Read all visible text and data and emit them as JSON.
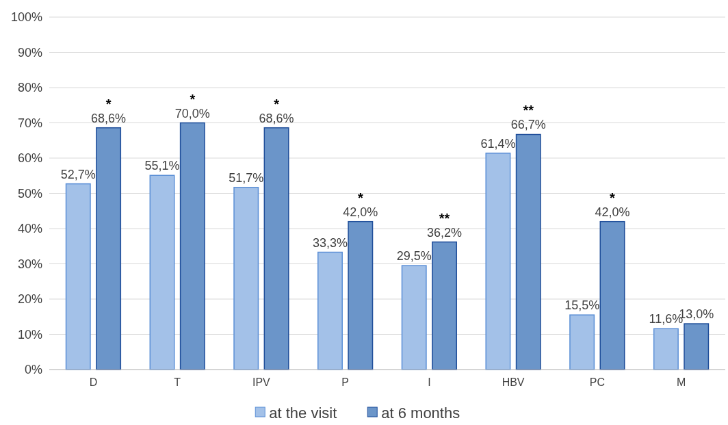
{
  "chart_data": {
    "type": "bar",
    "categories": [
      "D",
      "T",
      "IPV",
      "P",
      "I",
      "HBV",
      "PC",
      "M"
    ],
    "series": [
      {
        "name": "at the visit",
        "color": "#a3c1e8",
        "values": [
          52.7,
          55.1,
          51.7,
          33.3,
          29.5,
          61.4,
          15.5,
          11.6
        ],
        "value_labels": [
          "52,7%",
          "55,1%",
          "51,7%",
          "33,3%",
          "29,5%",
          "61,4%",
          "15,5%",
          "11,6%"
        ]
      },
      {
        "name": "at 6 months",
        "color": "#6b95c9",
        "values": [
          68.6,
          70.0,
          68.6,
          42.0,
          36.2,
          66.7,
          42.0,
          13.0
        ],
        "value_labels": [
          "68,6%",
          "70,0%",
          "68,6%",
          "42,0%",
          "36,2%",
          "66,7%",
          "42,0%",
          "13,0%"
        ]
      }
    ],
    "ylim": [
      0,
      100
    ],
    "yticks": [
      {
        "value": 0,
        "label": "0%"
      },
      {
        "value": 10,
        "label": "10%"
      },
      {
        "value": 20,
        "label": "20%"
      },
      {
        "value": 30,
        "label": "30%"
      },
      {
        "value": 40,
        "label": "40%"
      },
      {
        "value": 50,
        "label": "50%"
      },
      {
        "value": 60,
        "label": "60%"
      },
      {
        "value": 70,
        "label": "70%"
      },
      {
        "value": 80,
        "label": "80%"
      },
      {
        "value": 90,
        "label": "90%"
      },
      {
        "value": 100,
        "label": "100%"
      }
    ],
    "grid": "y",
    "legend": "bottom",
    "annotations": [
      {
        "text": "*",
        "x": "D",
        "y": 68.6
      },
      {
        "text": "*",
        "x": "T",
        "y": 70.0
      },
      {
        "text": "*",
        "x": "IPV",
        "y": 68.6
      },
      {
        "text": "*",
        "x": "P",
        "y": 42.0
      },
      {
        "text": "**",
        "x": "I",
        "y": 36.2
      },
      {
        "text": "**",
        "x": "HBV",
        "y": 66.7
      },
      {
        "text": "*",
        "x": "PC",
        "y": 42.0
      }
    ]
  }
}
